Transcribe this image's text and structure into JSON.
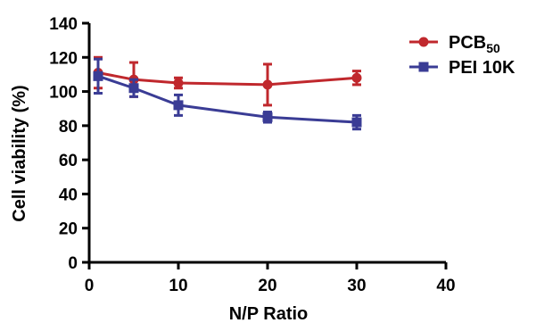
{
  "chart_data": {
    "type": "line",
    "xlabel": "N/P Ratio",
    "ylabel": "Cell viability (%)",
    "xlim": [
      0,
      40
    ],
    "ylim": [
      0,
      140
    ],
    "xticks": [
      0,
      10,
      20,
      30,
      40
    ],
    "yticks": [
      0,
      20,
      40,
      60,
      80,
      100,
      120,
      140
    ],
    "grid": false,
    "legend_position": "top-right",
    "series": [
      {
        "name": "PCB",
        "name_subscript": "50",
        "color": "#c0282d",
        "marker": "circle",
        "x": [
          1,
          5,
          10,
          20,
          30
        ],
        "y": [
          111,
          107,
          105,
          104,
          108
        ],
        "error": [
          9,
          10,
          3,
          12,
          4
        ]
      },
      {
        "name": "PEI 10K",
        "color": "#3a3c95",
        "marker": "square",
        "x": [
          1,
          5,
          10,
          20,
          30
        ],
        "y": [
          109,
          102,
          92,
          85,
          82
        ],
        "error": [
          10,
          5,
          6,
          3,
          4
        ]
      }
    ]
  }
}
